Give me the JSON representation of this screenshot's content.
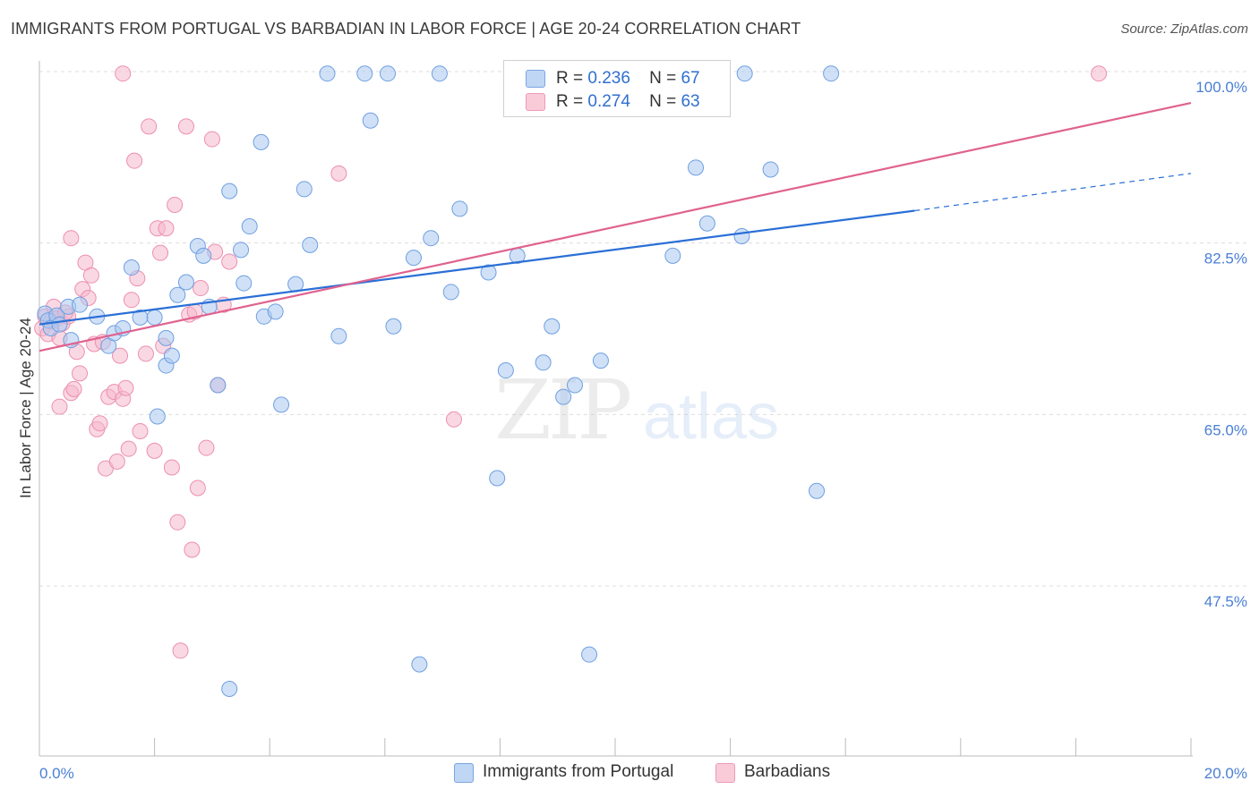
{
  "title": "IMMIGRANTS FROM PORTUGAL VS BARBADIAN IN LABOR FORCE | AGE 20-24 CORRELATION CHART",
  "source": "Source: ZipAtlas.com",
  "watermark": {
    "zip": "ZIP",
    "atlas": "atlas"
  },
  "legend": {
    "r_label": "R =",
    "n_label": "N =",
    "series": [
      {
        "r": "0.236",
        "n": "67"
      },
      {
        "r": "0.274",
        "n": "63"
      }
    ]
  },
  "bottom_legend": [
    "Immigrants from Portugal",
    "Barbadians"
  ],
  "colors": {
    "blue_fill": "#aac8f0",
    "blue_stroke": "#6f9fe0",
    "blue_line": "#2a6fd6",
    "pink_fill": "#f6b8cc",
    "pink_stroke": "#ec8fb0",
    "pink_line": "#e0628f",
    "tick_text": "#4a7fd4",
    "grid": "#dddddd"
  },
  "chart_data": {
    "type": "scatter",
    "title": "IMMIGRANTS FROM PORTUGAL VS BARBADIAN IN LABOR FORCE | AGE 20-24 CORRELATION CHART",
    "ylabel": "In Labor Force | Age 20-24",
    "xlabel": "",
    "xlim": [
      0,
      20
    ],
    "ylim": [
      30,
      103
    ],
    "x_tick_labels": [
      "0.0%",
      "20.0%"
    ],
    "y_ticks": [
      {
        "value": 100,
        "label": "100.0%"
      },
      {
        "value": 82.5,
        "label": "82.5%"
      },
      {
        "value": 65,
        "label": "65.0%"
      },
      {
        "value": 47.5,
        "label": "47.5%"
      }
    ],
    "grid": "horizontal dashed",
    "series": [
      {
        "name": "Immigrants from Portugal",
        "R": 0.236,
        "N": 67,
        "trend": {
          "x0": 0,
          "y0": 74.2,
          "x1": 15.2,
          "y1": 85.8,
          "dash_to_x": 20,
          "dash_to_y": 89.6
        },
        "points": [
          [
            0.1,
            75.3
          ],
          [
            0.15,
            74.6
          ],
          [
            0.2,
            73.8
          ],
          [
            0.3,
            75.1
          ],
          [
            0.35,
            74.2
          ],
          [
            0.5,
            76.0
          ],
          [
            0.55,
            72.6
          ],
          [
            0.7,
            76.2
          ],
          [
            1.0,
            75.0
          ],
          [
            1.2,
            72.0
          ],
          [
            1.3,
            73.3
          ],
          [
            1.45,
            73.8
          ],
          [
            1.6,
            80.0
          ],
          [
            1.75,
            74.9
          ],
          [
            2.0,
            74.9
          ],
          [
            2.2,
            72.8
          ],
          [
            2.05,
            64.8
          ],
          [
            2.2,
            70.0
          ],
          [
            2.3,
            71.0
          ],
          [
            2.4,
            77.2
          ],
          [
            2.55,
            78.5
          ],
          [
            2.75,
            82.2
          ],
          [
            2.85,
            81.2
          ],
          [
            2.95,
            76.0
          ],
          [
            3.1,
            68.0
          ],
          [
            3.3,
            37.0
          ],
          [
            3.3,
            87.8
          ],
          [
            3.5,
            81.8
          ],
          [
            3.55,
            78.4
          ],
          [
            3.65,
            84.2
          ],
          [
            3.85,
            92.8
          ],
          [
            3.9,
            75.0
          ],
          [
            4.1,
            75.5
          ],
          [
            4.2,
            66.0
          ],
          [
            4.45,
            78.3
          ],
          [
            4.6,
            88.0
          ],
          [
            4.7,
            82.3
          ],
          [
            5.0,
            99.8
          ],
          [
            5.2,
            73.0
          ],
          [
            5.65,
            99.8
          ],
          [
            5.75,
            95.0
          ],
          [
            6.05,
            99.8
          ],
          [
            6.15,
            74.0
          ],
          [
            6.5,
            81.0
          ],
          [
            6.6,
            39.5
          ],
          [
            6.8,
            83.0
          ],
          [
            6.95,
            99.8
          ],
          [
            7.15,
            77.5
          ],
          [
            7.3,
            86.0
          ],
          [
            7.8,
            79.5
          ],
          [
            7.95,
            58.5
          ],
          [
            8.1,
            69.5
          ],
          [
            8.3,
            81.2
          ],
          [
            8.75,
            70.3
          ],
          [
            8.9,
            74.0
          ],
          [
            9.1,
            66.8
          ],
          [
            9.3,
            68.0
          ],
          [
            9.75,
            70.5
          ],
          [
            11.0,
            81.2
          ],
          [
            11.4,
            90.2
          ],
          [
            11.6,
            84.5
          ],
          [
            12.2,
            83.2
          ],
          [
            12.7,
            90.0
          ],
          [
            13.5,
            57.2
          ],
          [
            13.75,
            99.8
          ],
          [
            12.25,
            99.8
          ],
          [
            9.55,
            40.5
          ]
        ]
      },
      {
        "name": "Barbadians",
        "R": 0.274,
        "N": 63,
        "trend": {
          "x0": 0,
          "y0": 71.5,
          "x1": 20,
          "y1": 96.8
        },
        "points": [
          [
            0.05,
            73.8
          ],
          [
            0.1,
            75.0
          ],
          [
            0.15,
            73.2
          ],
          [
            0.2,
            74.5
          ],
          [
            0.25,
            76.0
          ],
          [
            0.3,
            74.8
          ],
          [
            0.35,
            65.8
          ],
          [
            0.4,
            74.3
          ],
          [
            0.5,
            75.0
          ],
          [
            0.55,
            67.2
          ],
          [
            0.6,
            67.6
          ],
          [
            0.65,
            71.4
          ],
          [
            0.75,
            77.8
          ],
          [
            0.8,
            80.5
          ],
          [
            0.85,
            76.9
          ],
          [
            0.9,
            79.2
          ],
          [
            0.95,
            72.2
          ],
          [
            1.0,
            63.5
          ],
          [
            1.05,
            64.1
          ],
          [
            1.1,
            72.4
          ],
          [
            1.15,
            59.5
          ],
          [
            1.2,
            66.8
          ],
          [
            1.3,
            67.3
          ],
          [
            1.35,
            60.2
          ],
          [
            1.45,
            66.6
          ],
          [
            1.5,
            67.7
          ],
          [
            1.55,
            61.5
          ],
          [
            1.6,
            76.7
          ],
          [
            1.65,
            90.9
          ],
          [
            1.7,
            78.9
          ],
          [
            1.75,
            63.3
          ],
          [
            1.85,
            71.2
          ],
          [
            1.9,
            94.4
          ],
          [
            2.0,
            61.3
          ],
          [
            2.05,
            84.0
          ],
          [
            2.1,
            81.5
          ],
          [
            2.15,
            72.0
          ],
          [
            2.2,
            84.0
          ],
          [
            2.3,
            59.6
          ],
          [
            2.35,
            86.4
          ],
          [
            2.4,
            54.0
          ],
          [
            2.45,
            40.9
          ],
          [
            2.55,
            94.4
          ],
          [
            2.6,
            75.2
          ],
          [
            2.65,
            51.2
          ],
          [
            2.7,
            75.5
          ],
          [
            2.75,
            57.5
          ],
          [
            2.8,
            77.9
          ],
          [
            2.9,
            61.6
          ],
          [
            3.0,
            93.1
          ],
          [
            3.05,
            81.6
          ],
          [
            3.2,
            76.2
          ],
          [
            3.3,
            80.6
          ],
          [
            3.1,
            68.0
          ],
          [
            1.45,
            99.8
          ],
          [
            0.55,
            83.0
          ],
          [
            0.7,
            69.2
          ],
          [
            0.35,
            72.8
          ],
          [
            5.2,
            89.6
          ],
          [
            7.2,
            64.5
          ],
          [
            18.4,
            99.8
          ],
          [
            1.4,
            71.0
          ],
          [
            0.45,
            75.4
          ]
        ]
      }
    ]
  }
}
